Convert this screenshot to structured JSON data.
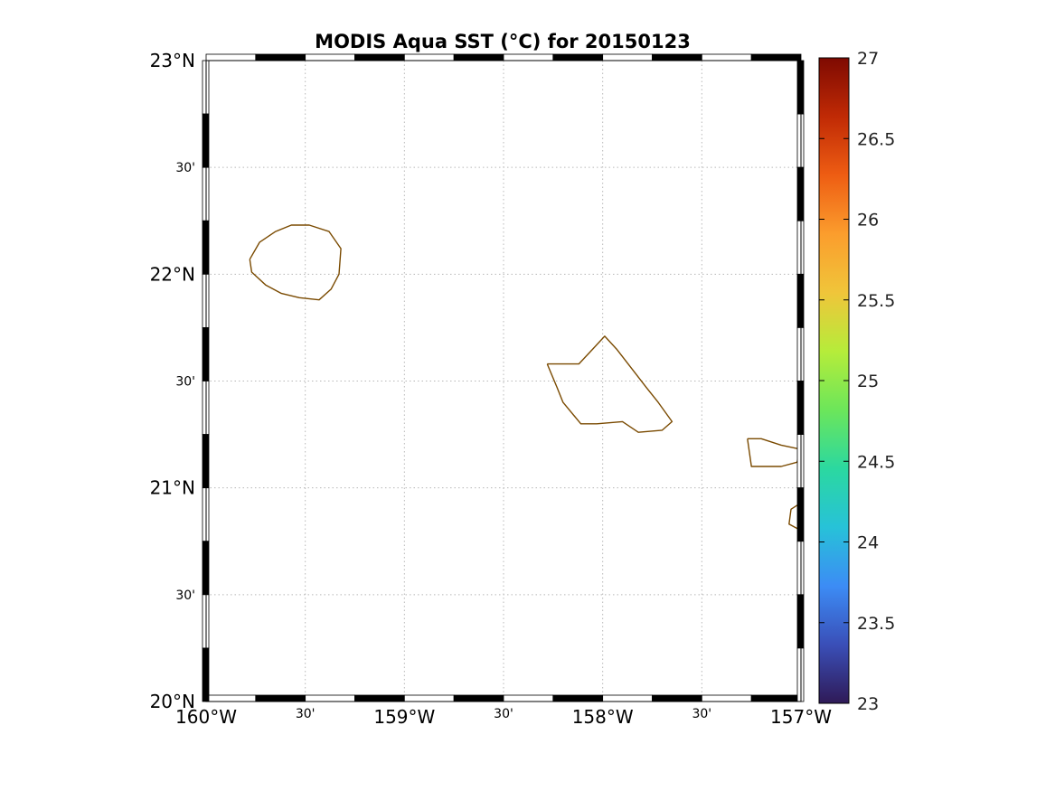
{
  "title": "MODIS Aqua SST (°C) for 20150123",
  "map": {
    "projection": "lat-lon frame with alternating black/white border",
    "lon_range": [
      -160,
      -157
    ],
    "lat_range": [
      20,
      23
    ],
    "grid": "dotted",
    "coastline_color": "#7a4a00",
    "lon_ticks": [
      {
        "value": -160,
        "label": "160°W",
        "major": true
      },
      {
        "value": -159.5,
        "label": "30'",
        "major": false
      },
      {
        "value": -159,
        "label": "159°W",
        "major": true
      },
      {
        "value": -158.5,
        "label": "30'",
        "major": false
      },
      {
        "value": -158,
        "label": "158°W",
        "major": true
      },
      {
        "value": -157.5,
        "label": "30'",
        "major": false
      },
      {
        "value": -157,
        "label": "157°W",
        "major": true
      }
    ],
    "lat_ticks": [
      {
        "value": 23,
        "label": "23°N",
        "major": true
      },
      {
        "value": 22.5,
        "label": "30'",
        "major": false
      },
      {
        "value": 22,
        "label": "22°N",
        "major": true
      },
      {
        "value": 21.5,
        "label": "30'",
        "major": false
      },
      {
        "value": 21,
        "label": "21°N",
        "major": true
      },
      {
        "value": 20.5,
        "label": "30'",
        "major": false
      },
      {
        "value": 20,
        "label": "20°N",
        "major": true
      }
    ],
    "islands": [
      {
        "name": "kauai",
        "coords": [
          [
            -159.78,
            22.07
          ],
          [
            -159.73,
            22.15
          ],
          [
            -159.65,
            22.2
          ],
          [
            -159.57,
            22.23
          ],
          [
            -159.48,
            22.23
          ],
          [
            -159.38,
            22.2
          ],
          [
            -159.32,
            22.12
          ],
          [
            -159.33,
            22.0
          ],
          [
            -159.37,
            21.93
          ],
          [
            -159.43,
            21.88
          ],
          [
            -159.53,
            21.89
          ],
          [
            -159.62,
            21.91
          ],
          [
            -159.7,
            21.95
          ],
          [
            -159.77,
            22.01
          ],
          [
            -159.78,
            22.07
          ]
        ]
      },
      {
        "name": "oahu",
        "coords": [
          [
            -158.28,
            21.58
          ],
          [
            -158.12,
            21.58
          ],
          [
            -158.05,
            21.65
          ],
          [
            -157.99,
            21.71
          ],
          [
            -157.93,
            21.65
          ],
          [
            -157.83,
            21.53
          ],
          [
            -157.78,
            21.47
          ],
          [
            -157.72,
            21.4
          ],
          [
            -157.65,
            21.31
          ],
          [
            -157.7,
            21.27
          ],
          [
            -157.82,
            21.26
          ],
          [
            -157.9,
            21.31
          ],
          [
            -158.03,
            21.3
          ],
          [
            -158.11,
            21.3
          ],
          [
            -158.2,
            21.4
          ],
          [
            -158.23,
            21.47
          ],
          [
            -158.28,
            21.58
          ]
        ]
      },
      {
        "name": "molokai",
        "coords": [
          [
            -157.27,
            21.23
          ],
          [
            -157.25,
            21.1
          ],
          [
            -157.1,
            21.1
          ],
          [
            -157.02,
            21.12
          ],
          [
            -157.0,
            21.18
          ],
          [
            -157.1,
            21.2
          ],
          [
            -157.2,
            21.23
          ],
          [
            -157.27,
            21.23
          ]
        ]
      },
      {
        "name": "lanai",
        "coords": [
          [
            -157.0,
            20.93
          ],
          [
            -157.05,
            20.9
          ],
          [
            -157.06,
            20.83
          ],
          [
            -157.0,
            20.8
          ]
        ]
      }
    ]
  },
  "colorbar": {
    "min": 23,
    "max": 27,
    "ticks": [
      "23",
      "23.5",
      "24",
      "24.5",
      "25",
      "25.5",
      "26",
      "26.5",
      "27"
    ],
    "stops": [
      "#2f1a57",
      "#3a4fb8",
      "#3c8cf5",
      "#27c2d8",
      "#2bd8a0",
      "#6ce65a",
      "#b6ec3a",
      "#f0c53a",
      "#fb9d2d",
      "#ee5d13",
      "#c02a05",
      "#7e0a02"
    ]
  }
}
